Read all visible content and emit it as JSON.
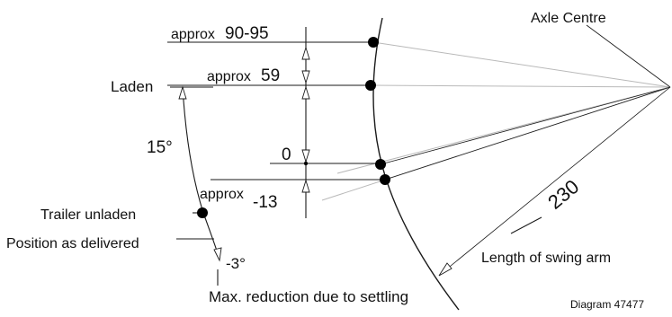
{
  "labels": {
    "axle_centre": "Axle Centre",
    "laden": "Laden",
    "approx_90_95_prefix": "approx",
    "approx_90_95_value": "90-95",
    "approx_59_prefix": "approx",
    "approx_59_value": "59",
    "zero": "0",
    "approx_13_prefix": "approx",
    "approx_13_value": "-13",
    "angle_15": "15°",
    "angle_minus3": "-3°",
    "trailer_unladen": "Trailer unladen",
    "position_as_delivered": "Position as delivered",
    "max_reduction": "Max. reduction due to settling",
    "dimension_230": "230",
    "length_of_swing_arm": "Length of swing arm",
    "diagram_number": "Diagram 47477"
  }
}
